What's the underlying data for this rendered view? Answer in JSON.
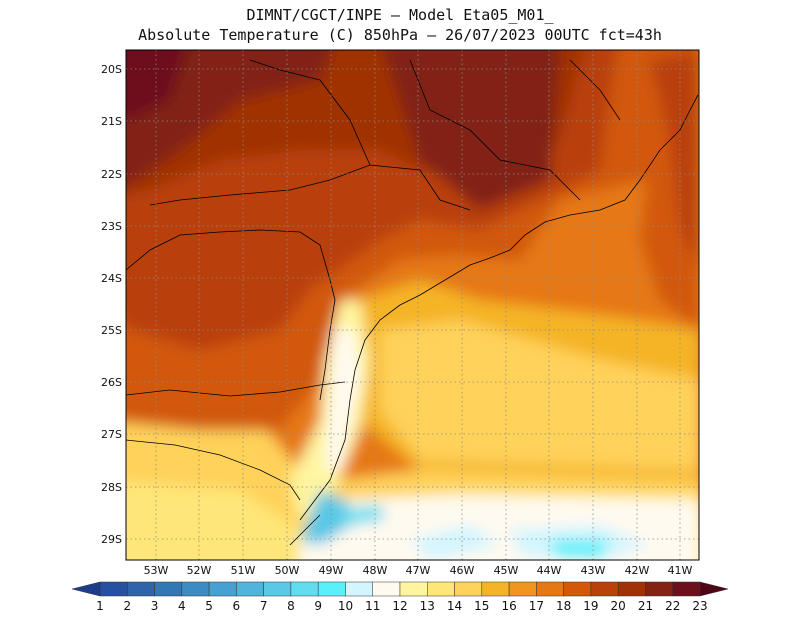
{
  "header": {
    "title_line1": "DIMNT/CGCT/INPE  –   Model Eta05_M01_",
    "title_line2": "Absolute Temperature (C) 850hPa  –   26/07/2023 00UTC fct=43h"
  },
  "map": {
    "lat_labels": [
      "20S",
      "21S",
      "22S",
      "23S",
      "24S",
      "25S",
      "26S",
      "27S",
      "28S",
      "29S"
    ],
    "lon_labels": [
      "53W",
      "52W",
      "51W",
      "50W",
      "49W",
      "48W",
      "47W",
      "46W",
      "45W",
      "44W",
      "43W",
      "42W",
      "41W"
    ]
  },
  "colorbar": {
    "labels": [
      "1",
      "2",
      "3",
      "4",
      "5",
      "6",
      "7",
      "8",
      "9",
      "10",
      "11",
      "12",
      "13",
      "14",
      "15",
      "16",
      "17",
      "18",
      "19",
      "20",
      "21",
      "22",
      "23"
    ],
    "colors": [
      "#1e3c8c",
      "#2650a0",
      "#2d64aa",
      "#3278b4",
      "#3c8cc3",
      "#46a0d2",
      "#50b4dc",
      "#5ac8e6",
      "#64dcf0",
      "#5af0fa",
      "#d2f5ff",
      "#fffaf0",
      "#fff5a0",
      "#ffe678",
      "#ffd25a",
      "#f5b428",
      "#f0961e",
      "#e67814",
      "#d2580a",
      "#b9410a",
      "#a03205",
      "#822314",
      "#6e0f1e",
      "#500514"
    ]
  }
}
